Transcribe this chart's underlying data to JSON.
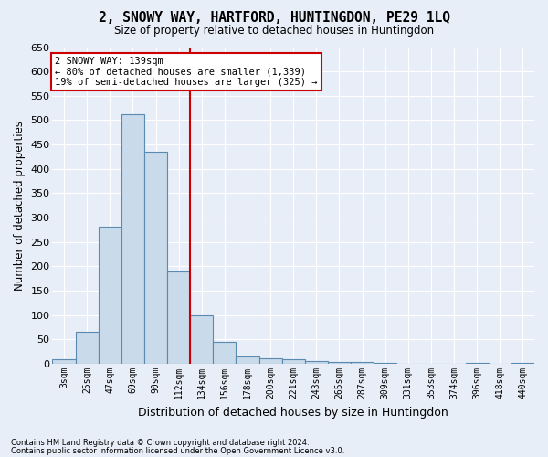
{
  "title": "2, SNOWY WAY, HARTFORD, HUNTINGDON, PE29 1LQ",
  "subtitle": "Size of property relative to detached houses in Huntingdon",
  "xlabel": "Distribution of detached houses by size in Huntingdon",
  "ylabel": "Number of detached properties",
  "bar_color": "#c9daea",
  "bar_edge_color": "#5a8ab0",
  "categories": [
    "3sqm",
    "25sqm",
    "47sqm",
    "69sqm",
    "90sqm",
    "112sqm",
    "134sqm",
    "156sqm",
    "178sqm",
    "200sqm",
    "221sqm",
    "243sqm",
    "265sqm",
    "287sqm",
    "309sqm",
    "331sqm",
    "353sqm",
    "374sqm",
    "396sqm",
    "418sqm",
    "440sqm"
  ],
  "values": [
    9,
    65,
    282,
    513,
    435,
    190,
    100,
    46,
    15,
    11,
    10,
    5,
    4,
    4,
    2,
    0,
    0,
    0,
    3,
    0,
    2
  ],
  "ylim": [
    0,
    650
  ],
  "yticks": [
    0,
    50,
    100,
    150,
    200,
    250,
    300,
    350,
    400,
    450,
    500,
    550,
    600,
    650
  ],
  "property_line_index": 5.5,
  "annotation_text": "2 SNOWY WAY: 139sqm\n← 80% of detached houses are smaller (1,339)\n19% of semi-detached houses are larger (325) →",
  "annotation_box_facecolor": "#ffffff",
  "annotation_box_edgecolor": "#cc0000",
  "line_color": "#cc0000",
  "footnote1": "Contains HM Land Registry data © Crown copyright and database right 2024.",
  "footnote2": "Contains public sector information licensed under the Open Government Licence v3.0.",
  "background_color": "#e8eef8",
  "grid_color": "#ffffff"
}
